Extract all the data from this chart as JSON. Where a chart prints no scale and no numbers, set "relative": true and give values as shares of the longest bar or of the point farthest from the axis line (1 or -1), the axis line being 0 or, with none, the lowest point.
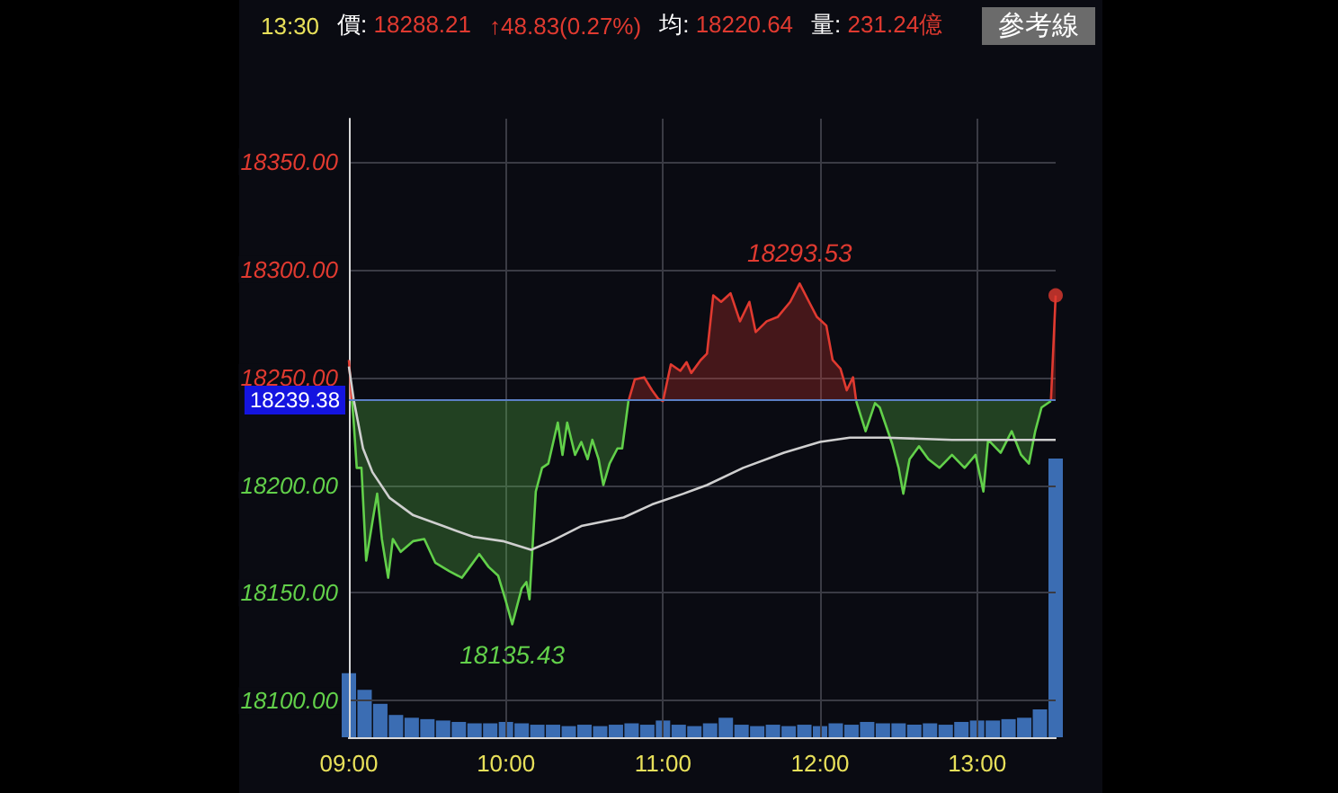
{
  "chart_data": [
    {
      "type": "line",
      "annotations": [
        "13:30",
        "價: 18288.21",
        "↑48.83(0.27%)",
        "均: 18220.64",
        "量: 231.24億",
        "參考線",
        {
          "text": "18293.53",
          "x": 11.87,
          "y": 18293.53
        },
        {
          "text": "18135.43",
          "x": 10.04,
          "y": 18135.43
        }
      ],
      "xlim": [
        9,
        13.5
      ],
      "xticks": [
        {
          "value": 9,
          "label": "09:00"
        },
        {
          "value": 10,
          "label": "10:00"
        },
        {
          "value": 11,
          "label": "11:00"
        },
        {
          "value": 12,
          "label": "12:00"
        },
        {
          "value": 13,
          "label": "13:00"
        }
      ],
      "ylim": [
        18083,
        18370
      ],
      "yticks": [
        {
          "value": 18100,
          "label": "18100.00"
        },
        {
          "value": 18150,
          "label": "18150.00"
        },
        {
          "value": 18200,
          "label": "18200.00"
        },
        {
          "value": 18250,
          "label": "18250.00"
        },
        {
          "value": 18300,
          "label": "18300.00"
        },
        {
          "value": 18350,
          "label": "18350.00"
        }
      ],
      "series": [
        {
          "type": "line",
          "color": "#e03a30",
          "x": [
            9.0,
            9.02,
            9.5,
            10.78,
            10.82,
            10.88,
            10.93,
            10.97,
            11.0,
            11.05,
            11.11,
            11.15,
            11.18,
            11.24,
            11.28,
            11.32,
            11.37,
            11.43,
            11.49,
            11.55,
            11.59,
            11.66,
            11.73,
            11.81,
            11.87,
            11.93,
            11.98,
            12.04,
            12.08,
            12.13,
            12.17,
            12.21,
            12.23,
            12.8,
            13.47,
            13.5
          ],
          "values": [
            18258,
            18239,
            null,
            18239,
            18249,
            18250,
            18244,
            18240,
            18239,
            18256,
            18253,
            18257,
            18252,
            18258,
            18261,
            18288,
            18285,
            18289,
            18276,
            18285,
            18271,
            18276,
            18278,
            18285,
            18293.53,
            18285,
            18278,
            18274,
            18258,
            18254,
            18244,
            18250,
            18239,
            null,
            18239,
            18288
          ],
          "lower": [
            18239,
            18239,
            null,
            18239,
            18239,
            18239,
            18239,
            18239,
            18239,
            18239,
            18239,
            18239,
            18239,
            18239,
            18239,
            18239,
            18239,
            18239,
            18239,
            18239,
            18239,
            18239,
            18239,
            18239,
            18239,
            18239,
            18239,
            18239,
            18239,
            18239,
            18239,
            18239,
            18239,
            null,
            18239,
            18239
          ],
          "upper": [
            18258,
            18239,
            null,
            18239,
            18249,
            18250,
            18244,
            18240,
            18239,
            18256,
            18253,
            18257,
            18252,
            18258,
            18261,
            18288,
            18285,
            18289,
            18276,
            18285,
            18271,
            18276,
            18278,
            18285,
            18293.53,
            18285,
            18278,
            18274,
            18258,
            18254,
            18244,
            18250,
            18239,
            null,
            18239,
            18288
          ]
        },
        {
          "type": "line",
          "color": "#62d04a",
          "x": [
            9.02,
            9.03,
            9.05,
            9.08,
            9.11,
            9.15,
            9.18,
            9.21,
            9.25,
            9.28,
            9.33,
            9.41,
            9.48,
            9.55,
            9.64,
            9.72,
            9.77,
            9.83,
            9.89,
            9.95,
            10.0,
            10.04,
            10.1,
            10.13,
            10.15,
            10.19,
            10.23,
            10.27,
            10.33,
            10.36,
            10.39,
            10.44,
            10.48,
            10.52,
            10.55,
            10.59,
            10.62,
            10.66,
            10.71,
            10.74,
            10.78,
            11.5,
            12.23,
            12.29,
            12.35,
            12.38,
            12.46,
            12.5,
            12.53,
            12.57,
            12.63,
            12.69,
            12.76,
            12.84,
            12.92,
            12.99,
            13.04,
            13.07,
            13.15,
            13.22,
            13.28,
            13.33,
            13.37,
            13.41,
            13.47
          ],
          "values": [
            18239,
            18230,
            18208,
            18208,
            18165,
            18183,
            18196,
            18175,
            18157,
            18175,
            18169,
            18174,
            18175,
            18164,
            18160,
            18157,
            18162,
            18168,
            18162,
            18158,
            18146,
            18135.43,
            18152,
            18155,
            18147,
            18197,
            18208,
            18210,
            18229,
            18214,
            18229,
            18214,
            18220,
            18212,
            18221,
            18212,
            18200,
            18210,
            18217,
            18217,
            18239,
            null,
            18239,
            18225,
            18238,
            18236,
            18219,
            18208,
            18196,
            18212,
            18218,
            18212,
            18208,
            18214,
            18208,
            18214,
            18197,
            18221,
            18215,
            18225,
            18214,
            18210,
            18225,
            18236,
            18239
          ],
          "lower": [
            18239,
            18230,
            18208,
            18208,
            18165,
            18183,
            18196,
            18175,
            18157,
            18175,
            18169,
            18174,
            18175,
            18164,
            18160,
            18157,
            18162,
            18168,
            18162,
            18158,
            18146,
            18135.43,
            18152,
            18155,
            18147,
            18197,
            18208,
            18210,
            18229,
            18214,
            18229,
            18214,
            18220,
            18212,
            18221,
            18212,
            18200,
            18210,
            18217,
            18217,
            18239,
            null,
            18239,
            18225,
            18238,
            18236,
            18219,
            18208,
            18196,
            18212,
            18218,
            18212,
            18208,
            18214,
            18208,
            18214,
            18197,
            18221,
            18215,
            18225,
            18214,
            18210,
            18225,
            18236,
            18239
          ],
          "upper": [
            18239,
            18239,
            18239,
            18239,
            18239,
            18239,
            18239,
            18239,
            18239,
            18239,
            18239,
            18239,
            18239,
            18239,
            18239,
            18239,
            18239,
            18239,
            18239,
            18239,
            18239,
            18239,
            18239,
            18239,
            18239,
            18239,
            18239,
            18239,
            18239,
            18239,
            18239,
            18239,
            18239,
            18239,
            18239,
            18239,
            18239,
            18239,
            18239,
            18239,
            18239,
            null,
            18239,
            18239,
            18239,
            18239,
            18239,
            18239,
            18239,
            18239,
            18239,
            18239,
            18239,
            18239,
            18239,
            18239,
            18239,
            18239,
            18239,
            18239,
            18239,
            18239,
            18239,
            18239,
            18239
          ]
        },
        {
          "color": "#cfcfcf",
          "x": [
            9.0,
            9.03,
            9.09,
            9.15,
            9.26,
            9.41,
            9.6,
            9.79,
            9.98,
            10.16,
            10.29,
            10.48,
            10.75,
            10.93,
            11.13,
            11.28,
            11.51,
            11.77,
            12.0,
            12.19,
            12.42,
            12.84,
            13.22,
            13.5
          ],
          "values": [
            18255,
            18240,
            18217,
            18206,
            18194,
            18186,
            18181,
            18176,
            18174,
            18170,
            18174,
            18181,
            18185,
            18191,
            18196,
            18200,
            18208,
            18215,
            18220,
            18222,
            18222,
            18221,
            18221,
            18221
          ]
        },
        {
          "type": "scatter",
          "color": "#e03a30",
          "x": [
            13.5
          ],
          "values": [
            18288
          ]
        }
      ],
      "ref_lines": [
        {
          "axis": "y",
          "value": 18239.38,
          "label": "18239.38",
          "color": "#5b7fc4"
        }
      ],
      "grid": true
    },
    {
      "type": "bar",
      "relative": true,
      "color": "#3b6db3",
      "xlim": [
        9,
        13.5
      ],
      "x": [
        9.0,
        9.1,
        9.2,
        9.3,
        9.4,
        9.5,
        9.6,
        9.7,
        9.8,
        9.9,
        10.0,
        10.1,
        10.2,
        10.3,
        10.4,
        10.5,
        10.6,
        10.7,
        10.8,
        10.9,
        11.0,
        11.1,
        11.2,
        11.3,
        11.4,
        11.5,
        11.6,
        11.7,
        11.8,
        11.9,
        12.0,
        12.1,
        12.2,
        12.3,
        12.4,
        12.5,
        12.6,
        12.7,
        12.8,
        12.9,
        13.0,
        13.1,
        13.2,
        13.3,
        13.4,
        13.5
      ],
      "values": [
        0.23,
        0.17,
        0.12,
        0.08,
        0.07,
        0.065,
        0.06,
        0.055,
        0.05,
        0.05,
        0.055,
        0.05,
        0.045,
        0.045,
        0.04,
        0.045,
        0.04,
        0.045,
        0.05,
        0.045,
        0.06,
        0.045,
        0.04,
        0.05,
        0.07,
        0.045,
        0.04,
        0.045,
        0.04,
        0.045,
        0.04,
        0.05,
        0.045,
        0.055,
        0.05,
        0.05,
        0.045,
        0.05,
        0.045,
        0.055,
        0.06,
        0.06,
        0.065,
        0.07,
        0.1,
        1
      ]
    }
  ]
}
